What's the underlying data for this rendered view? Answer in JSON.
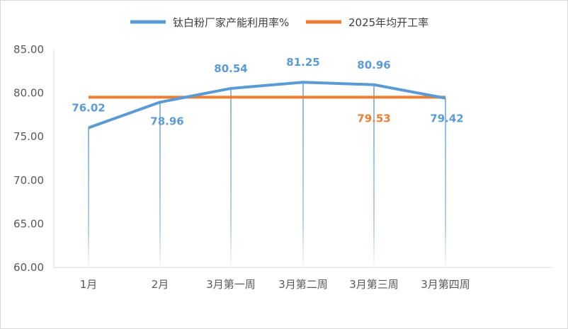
{
  "chart_data": {
    "type": "line",
    "categories": [
      "1月",
      "2月",
      "3月第一周",
      "3月第二周",
      "3月第三周",
      "3月第四周"
    ],
    "series": [
      {
        "name": "钛白粉厂家产能利用率%",
        "color": "#5b9bd5",
        "values": [
          76.02,
          78.96,
          80.54,
          81.25,
          80.96,
          79.42
        ],
        "labels": [
          "76.02",
          "78.96",
          "80.54",
          "81.25",
          "80.96",
          "79.42"
        ]
      },
      {
        "name": "2025年均开工率",
        "color": "#ed7d31",
        "values": [
          79.53,
          79.53,
          79.53,
          79.53,
          79.53,
          79.53
        ],
        "label": "79.53"
      }
    ],
    "ylim": [
      60,
      85
    ],
    "yticks": [
      "60.00",
      "65.00",
      "70.00",
      "75.00",
      "80.00",
      "85.00"
    ],
    "legend_position": "top",
    "grid": false,
    "drop_lines": true
  }
}
